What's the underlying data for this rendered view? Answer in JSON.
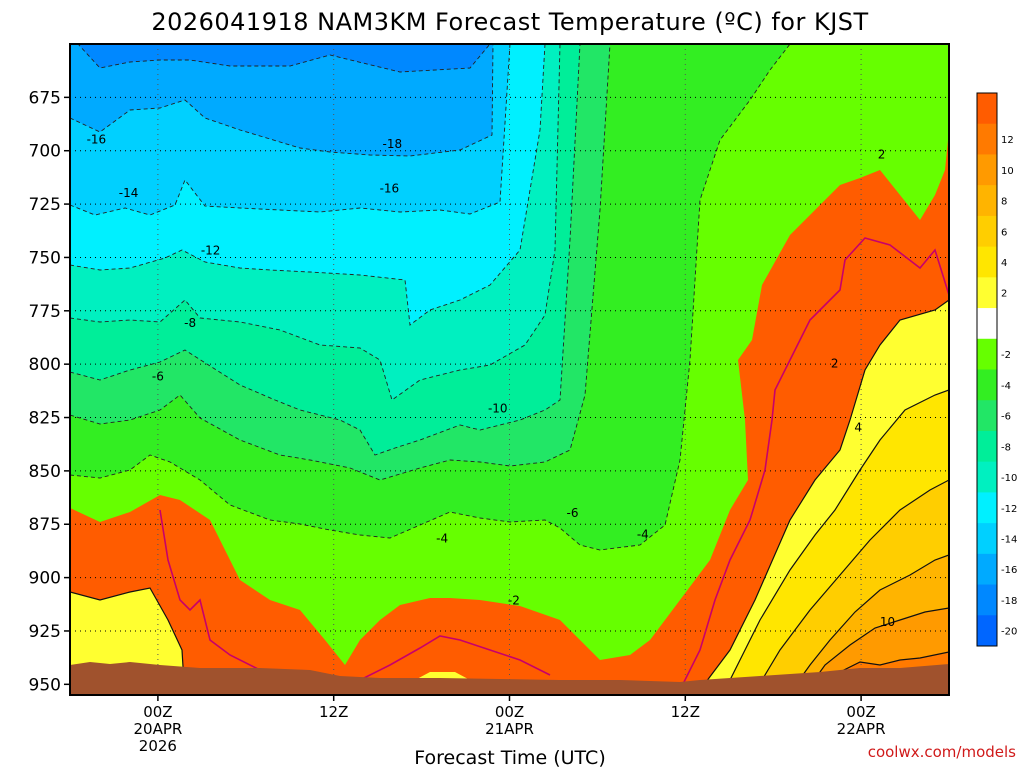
{
  "chart_data": {
    "type": "contour",
    "title": "2026041918 NAM3KM Forecast Temperature (ºC) for KJST",
    "xlabel": "Forecast Time (UTC)",
    "credit": "coolwx.com/models",
    "y_axis": {
      "quantity": "pressure (mb)",
      "ticks": [
        675,
        700,
        725,
        750,
        775,
        800,
        825,
        850,
        875,
        900,
        925,
        950
      ],
      "range": [
        650,
        955
      ],
      "inverted": true
    },
    "x_axis": {
      "quantity": "forecast hour",
      "range": [
        -6,
        54
      ],
      "ticks": [
        {
          "hour": 0,
          "lines": [
            "00Z",
            "20APR",
            "2026"
          ]
        },
        {
          "hour": 12,
          "lines": [
            "12Z"
          ]
        },
        {
          "hour": 24,
          "lines": [
            "00Z",
            "21APR"
          ]
        },
        {
          "hour": 36,
          "lines": [
            "12Z"
          ]
        },
        {
          "hour": 48,
          "lines": [
            "00Z",
            "22APR"
          ]
        }
      ]
    },
    "grid": true,
    "colorbar": {
      "placement": "right",
      "levels": [
        {
          "label": "",
          "color": "#ff5c00"
        },
        {
          "label": "12",
          "color": "#ff7a00"
        },
        {
          "label": "10",
          "color": "#ff9a00"
        },
        {
          "label": "8",
          "color": "#ffb400"
        },
        {
          "label": "6",
          "color": "#ffce00"
        },
        {
          "label": "4",
          "color": "#ffe600"
        },
        {
          "label": "2",
          "color": "#ffff30"
        },
        {
          "label": "",
          "color": "#ffffff"
        },
        {
          "label": "-2",
          "color": "#66ff00"
        },
        {
          "label": "-4",
          "color": "#33ee22"
        },
        {
          "label": "-6",
          "color": "#22e666"
        },
        {
          "label": "-8",
          "color": "#00ee99"
        },
        {
          "label": "-10",
          "color": "#00f0c0"
        },
        {
          "label": "-12",
          "color": "#00f0ff"
        },
        {
          "label": "-14",
          "color": "#00d0ff"
        },
        {
          "label": "-16",
          "color": "#00aaff"
        },
        {
          "label": "-18",
          "color": "#0088ff"
        },
        {
          "label": "-20",
          "color": "#0066ff"
        }
      ]
    },
    "ground_color": "#a0522d",
    "contour_labels": [
      {
        "text": "-16",
        "hour": -4.2,
        "p": 695
      },
      {
        "text": "-18",
        "hour": 16,
        "p": 697
      },
      {
        "text": "-16",
        "hour": 15.8,
        "p": 718
      },
      {
        "text": "-14",
        "hour": -2,
        "p": 720
      },
      {
        "text": "-12",
        "hour": 3.6,
        "p": 747
      },
      {
        "text": "-8",
        "hour": 2.2,
        "p": 781
      },
      {
        "text": "-6",
        "hour": 0,
        "p": 806
      },
      {
        "text": "-10",
        "hour": 23.2,
        "p": 821
      },
      {
        "text": "-6",
        "hour": 28.3,
        "p": 870
      },
      {
        "text": "-4",
        "hour": 19.4,
        "p": 882
      },
      {
        "text": "-4",
        "hour": 33.1,
        "p": 880
      },
      {
        "text": "-2",
        "hour": 24.3,
        "p": 911
      },
      {
        "text": "2",
        "hour": 49.4,
        "p": 702
      },
      {
        "text": "2",
        "hour": 46.2,
        "p": 800
      },
      {
        "text": "4",
        "hour": 47.8,
        "p": 830
      },
      {
        "text": "10",
        "hour": 49.8,
        "p": 921
      }
    ]
  }
}
